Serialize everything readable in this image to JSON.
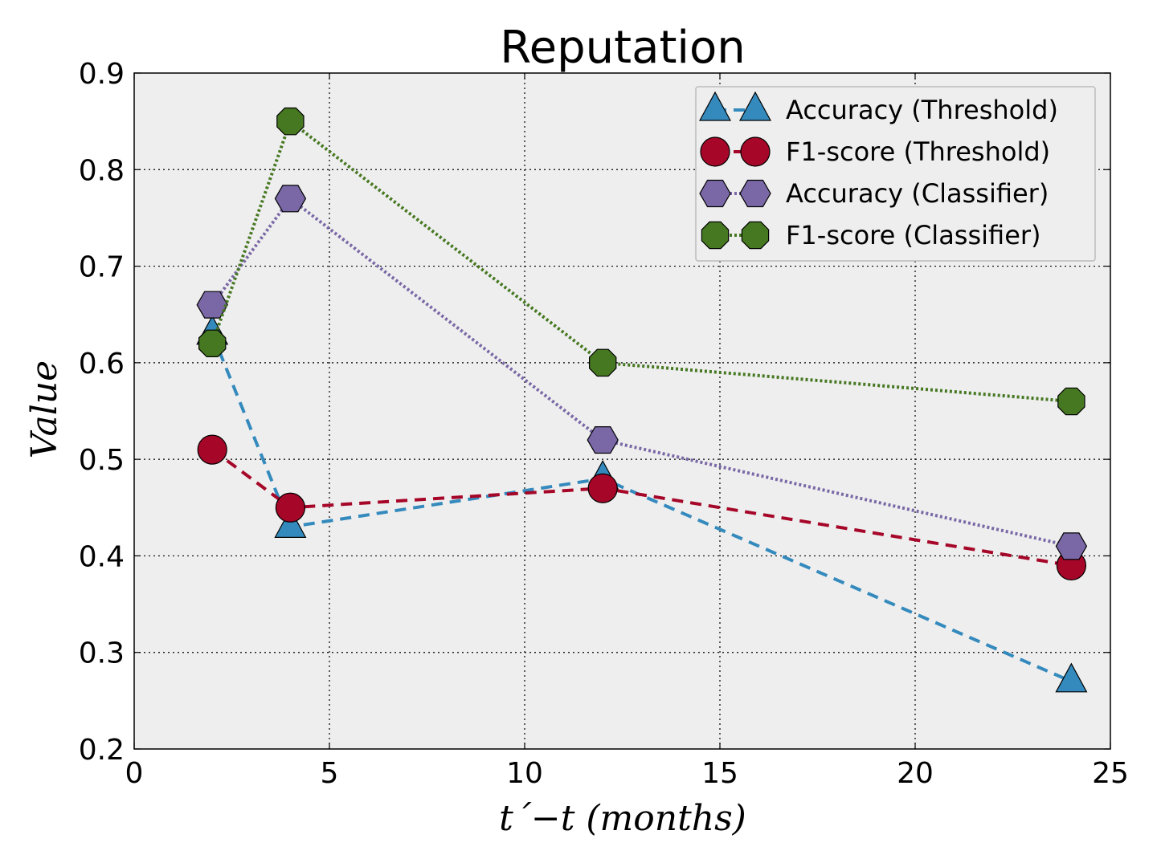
{
  "chart_data": {
    "type": "line",
    "title": "Reputation",
    "xlabel": "t´−t (months)",
    "ylabel": "Value",
    "xlim": [
      0,
      25
    ],
    "ylim": [
      0.2,
      0.9
    ],
    "xticks": [
      0,
      5,
      10,
      15,
      20,
      25
    ],
    "xtick_labels": [
      "0",
      "5",
      "10",
      "15",
      "20",
      "25"
    ],
    "yticks": [
      0.2,
      0.3,
      0.4,
      0.5,
      0.6,
      0.7,
      0.8,
      0.9
    ],
    "ytick_labels": [
      "0.2",
      "0.3",
      "0.4",
      "0.5",
      "0.6",
      "0.7",
      "0.8",
      "0.9"
    ],
    "grid": true,
    "legend_position": "top-right",
    "x": [
      2,
      4,
      12,
      24
    ],
    "series": [
      {
        "name": "Accuracy (Threshold)",
        "values": [
          0.63,
          0.43,
          0.48,
          0.27
        ],
        "marker": "triangle",
        "linestyle": "dashed",
        "color": "#348ABD"
      },
      {
        "name": "F1-score (Threshold)",
        "values": [
          0.51,
          0.45,
          0.47,
          0.39
        ],
        "marker": "circle",
        "linestyle": "dashed",
        "color": "#A60628"
      },
      {
        "name": "Accuracy (Classifier)",
        "values": [
          0.66,
          0.77,
          0.52,
          0.41
        ],
        "marker": "hexagon",
        "linestyle": "dotted",
        "color": "#7A68A6"
      },
      {
        "name": "F1-score (Classifier)",
        "values": [
          0.62,
          0.85,
          0.6,
          0.56
        ],
        "marker": "octagon",
        "linestyle": "dotted",
        "color": "#467821"
      }
    ]
  }
}
